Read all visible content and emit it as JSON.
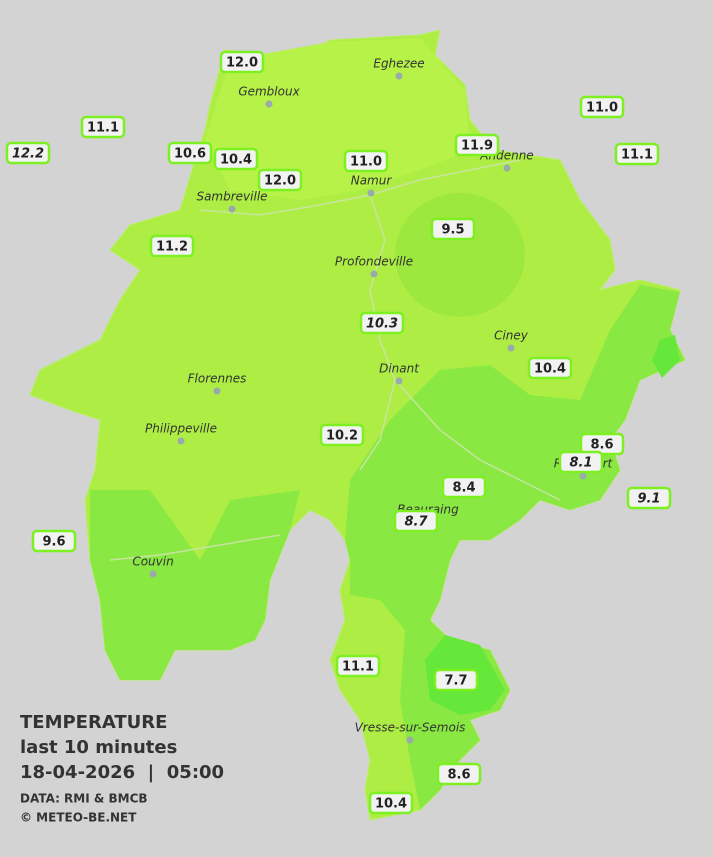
{
  "map": {
    "cities": [
      "Eghezee",
      "Gembloux",
      "Andenne",
      "Namur",
      "Sambreville",
      "Profondeville",
      "Ciney",
      "Dinant",
      "Florennes",
      "Philippeville",
      "Rochefort",
      "Beauraing",
      "Couvin",
      "Vresse-sur-Semois"
    ],
    "stations": [
      "12.0",
      "11.1",
      "12.2",
      "10.6",
      "10.4",
      "12.0",
      "11.0",
      "11.9",
      "11.0",
      "11.1",
      "11.2",
      "9.5",
      "10.3",
      "10.4",
      "10.2",
      "8.6",
      "8.1",
      "9.1",
      "8.4",
      "8.7",
      "9.6",
      "11.1",
      "7.7",
      "8.6",
      "10.4"
    ]
  },
  "legend": {
    "title": "TEMPERATURE",
    "subtitle": "last 10 minutes",
    "datetime": "18-04-2026  |  05:00",
    "source": "DATA: RMI & BMCB",
    "copyright": "© METEO-BE.NET"
  }
}
